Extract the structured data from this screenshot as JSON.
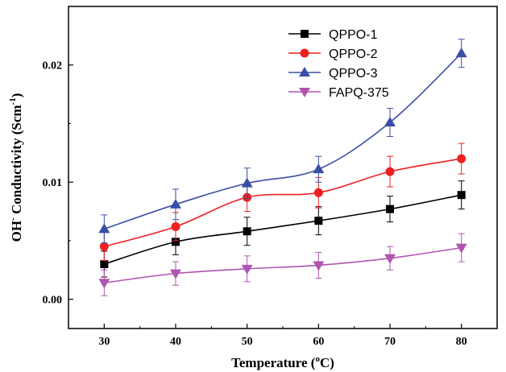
{
  "chart_data": {
    "type": "line",
    "x": [
      30,
      40,
      50,
      60,
      70,
      80
    ],
    "xlim": [
      25,
      85
    ],
    "ylim": [
      -0.0025,
      0.025
    ],
    "xticks": [
      "30",
      "40",
      "50",
      "60",
      "70",
      "80"
    ],
    "yticks": [
      "0.00",
      "0.01",
      "0.02"
    ],
    "ytick_values": [
      0.0,
      0.01,
      0.02
    ],
    "xlabel_main": "Temperature (",
    "xlabel_sup": "o",
    "xlabel_end": "C)",
    "ylabel_main": "OH",
    "ylabel_sup1": "-",
    "ylabel_mid": " Conductivity (Scm",
    "ylabel_sup2": "-1",
    "ylabel_end": ")",
    "grid": false,
    "legend_position": "top-right",
    "series": [
      {
        "name": "QPPO-1",
        "color": "#000000",
        "marker": "square",
        "values": [
          0.003,
          0.0049,
          0.0058,
          0.0067,
          0.0077,
          0.0089
        ],
        "errors": [
          0.0011,
          0.0011,
          0.0012,
          0.0012,
          0.0011,
          0.0012
        ]
      },
      {
        "name": "QPPO-2",
        "color": "#ee2020",
        "marker": "circle",
        "values": [
          0.0045,
          0.0062,
          0.0087,
          0.0091,
          0.0109,
          0.012
        ],
        "errors": [
          0.0012,
          0.0012,
          0.0012,
          0.0013,
          0.0013,
          0.0013
        ]
      },
      {
        "name": "QPPO-3",
        "color": "#3a4ea6",
        "marker": "triangle-up",
        "values": [
          0.006,
          0.0081,
          0.0099,
          0.0111,
          0.0151,
          0.021
        ],
        "errors": [
          0.0012,
          0.0013,
          0.0013,
          0.0011,
          0.0012,
          0.0012
        ]
      },
      {
        "name": "FAPQ-375",
        "color": "#b055b0",
        "marker": "triangle-down",
        "values": [
          0.0014,
          0.0022,
          0.0026,
          0.0029,
          0.0035,
          0.0044
        ],
        "errors": [
          0.0011,
          0.001,
          0.0011,
          0.0011,
          0.001,
          0.0012
        ]
      }
    ]
  }
}
